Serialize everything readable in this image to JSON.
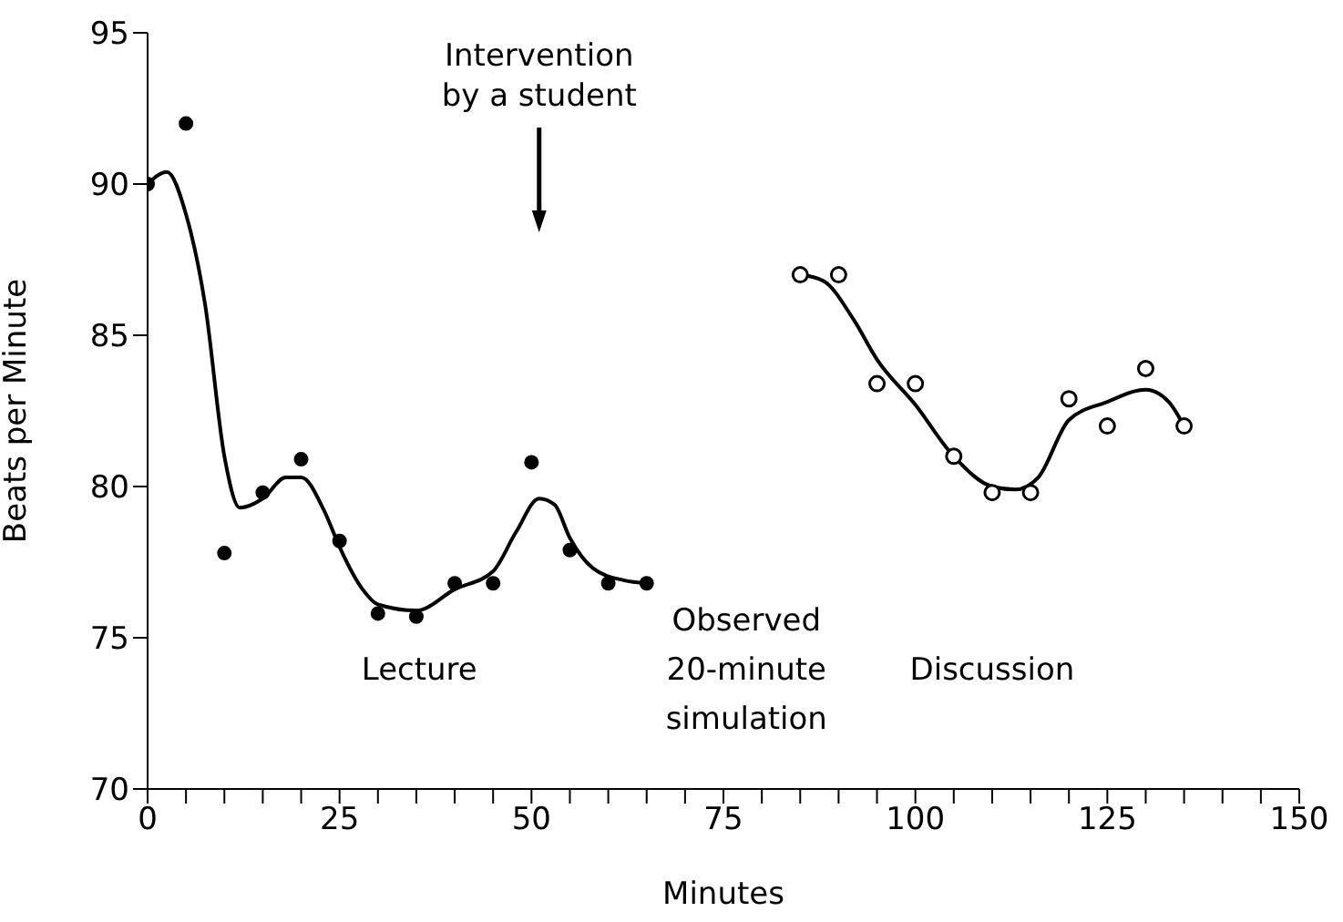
{
  "chart_data": {
    "type": "scatter",
    "xlabel": "Minutes",
    "ylabel": "Beats per Minute",
    "xlim": [
      0,
      150
    ],
    "xticks": [
      0,
      {
        "value": 5,
        "label": null
      },
      {
        "value": 10,
        "label": null
      },
      {
        "value": 15,
        "label": null
      },
      {
        "value": 20,
        "label": null
      },
      25,
      {
        "value": 30,
        "label": null
      },
      {
        "value": 35,
        "label": null
      },
      {
        "value": 40,
        "label": null
      },
      {
        "value": 45,
        "label": null
      },
      50,
      {
        "value": 55,
        "label": null
      },
      {
        "value": 60,
        "label": null
      },
      {
        "value": 65,
        "label": null
      },
      {
        "value": 70,
        "label": null
      },
      75,
      {
        "value": 80,
        "label": null
      },
      {
        "value": 85,
        "label": null
      },
      {
        "value": 90,
        "label": null
      },
      {
        "value": 95,
        "label": null
      },
      100,
      {
        "value": 105,
        "label": null
      },
      {
        "value": 110,
        "label": null
      },
      {
        "value": 115,
        "label": null
      },
      {
        "value": 120,
        "label": null
      },
      125,
      {
        "value": 130,
        "label": null
      },
      {
        "value": 135,
        "label": null
      },
      {
        "value": 140,
        "label": null
      },
      {
        "value": 145,
        "label": null
      },
      150
    ],
    "ylim": [
      70,
      95
    ],
    "yticks": [
      70,
      75,
      80,
      85,
      90,
      95
    ],
    "marker": "circle",
    "series": [
      {
        "color": "#000000",
        "x": [
          0,
          5,
          10,
          15,
          20,
          25,
          30,
          35,
          40,
          45,
          50,
          55,
          60,
          65
        ],
        "values": [
          90,
          92,
          77.8,
          79.8,
          80.9,
          78.2,
          75.8,
          75.7,
          76.8,
          76.8,
          80.8,
          77.9,
          76.8,
          76.8
        ]
      },
      {
        "color": "#000000",
        "marker": "open circle",
        "x": [
          85,
          90,
          95,
          100,
          105,
          110,
          115,
          120,
          125,
          130,
          135
        ],
        "values": [
          87,
          87,
          83.4,
          83.4,
          81,
          79.8,
          79.8,
          82.9,
          82,
          83.9,
          82
        ]
      },
      {
        "type": "line",
        "color": "#000000",
        "marker": "none",
        "x": [
          0,
          2.5,
          5,
          7.5,
          10,
          12,
          15,
          18,
          20,
          23,
          25,
          28,
          30,
          35,
          40,
          45,
          48,
          51,
          53,
          55,
          58,
          62,
          65
        ],
        "values": [
          90,
          90.4,
          89,
          86,
          81,
          79.3,
          79.6,
          80.3,
          80.3,
          79.2,
          78,
          76.6,
          76.1,
          75.9,
          76.6,
          77.2,
          78.5,
          79.6,
          79.4,
          78.3,
          77.3,
          76.9,
          76.8
        ]
      },
      {
        "type": "line",
        "color": "#000000",
        "marker": "none",
        "x": [
          85,
          88,
          92,
          95,
          100,
          105,
          110,
          113,
          116,
          120,
          125,
          130,
          133,
          135
        ],
        "values": [
          87,
          86.8,
          85.5,
          84.2,
          82.7,
          81,
          80,
          79.9,
          80.3,
          82.2,
          82.8,
          83.2,
          82.8,
          82
        ]
      }
    ],
    "annotations": [
      "Intervention by a student",
      "Lecture",
      "Observed 20-minute simulation",
      "Discussion"
    ]
  }
}
